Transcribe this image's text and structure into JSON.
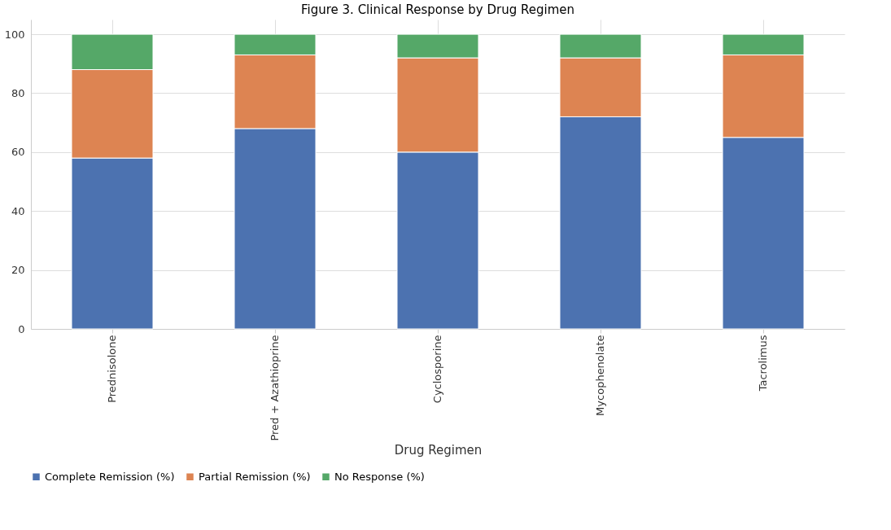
{
  "chart_data": {
    "type": "bar",
    "title": "Figure 3. Clinical Response by Drug Regimen",
    "xlabel": "Drug Regimen",
    "categories": [
      "Prednisolone",
      "Pred + Azathioprine",
      "Cyclosporine",
      "Mycophenolate",
      "Tacrolimus"
    ],
    "stacked": true,
    "series": [
      {
        "name": "Complete Remission (%)",
        "color": "#4c72b0",
        "values": [
          58,
          68,
          60,
          72,
          65
        ]
      },
      {
        "name": "Partial Remission (%)",
        "color": "#dd8452",
        "values": [
          30,
          25,
          32,
          20,
          28
        ]
      },
      {
        "name": "No Response (%)",
        "color": "#55a868",
        "values": [
          12,
          7,
          8,
          8,
          7
        ]
      }
    ],
    "ylim": [
      0,
      105
    ],
    "yticks": [
      0,
      20,
      40,
      60,
      80,
      100
    ],
    "grid": true,
    "legend": "bottom"
  }
}
